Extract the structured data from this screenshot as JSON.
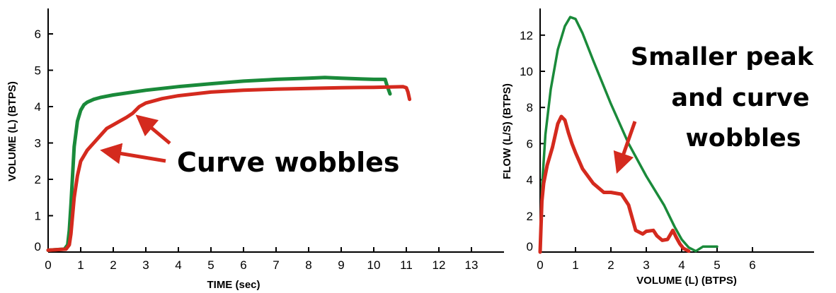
{
  "colors": {
    "green": "#1a8a3a",
    "red": "#d42a1e",
    "axis": "#000000"
  },
  "chart_data": [
    {
      "type": "line",
      "title": "",
      "xlabel": "TIME (sec)",
      "ylabel": "VOLUME (L) (BTPS)",
      "xlim": [
        0,
        14
      ],
      "ylim": [
        0,
        6.5
      ],
      "xticks": [
        "0",
        "1",
        "2",
        "3",
        "4",
        "5",
        "6",
        "7",
        "8",
        "9",
        "10",
        "11",
        "12",
        "13"
      ],
      "yticks": [
        "0",
        "1",
        "2",
        "3",
        "4",
        "5",
        "6"
      ],
      "series": [
        {
          "color": "green",
          "x": [
            0,
            0.5,
            0.6,
            0.65,
            0.7,
            0.75,
            0.8,
            0.9,
            1.0,
            1.1,
            1.2,
            1.4,
            1.6,
            2.0,
            3.0,
            4.0,
            5.0,
            6.0,
            7.0,
            8.0,
            8.5,
            9.0,
            10.0,
            10.35,
            10.4,
            10.5
          ],
          "y": [
            0.05,
            0.08,
            0.2,
            0.6,
            1.3,
            2.1,
            2.9,
            3.6,
            3.9,
            4.05,
            4.12,
            4.2,
            4.25,
            4.32,
            4.45,
            4.55,
            4.63,
            4.7,
            4.75,
            4.78,
            4.8,
            4.78,
            4.75,
            4.75,
            4.6,
            4.35
          ]
        },
        {
          "color": "red",
          "x": [
            0,
            0.55,
            0.65,
            0.7,
            0.75,
            0.8,
            0.9,
            1.0,
            1.2,
            1.4,
            1.6,
            1.8,
            2.0,
            2.2,
            2.4,
            2.6,
            2.8,
            3.0,
            3.5,
            4.0,
            5.0,
            6.0,
            7.0,
            8.0,
            9.0,
            10.0,
            10.9,
            11.0,
            11.05,
            11.1
          ],
          "y": [
            0.05,
            0.08,
            0.2,
            0.5,
            1.0,
            1.5,
            2.1,
            2.5,
            2.8,
            3.0,
            3.2,
            3.4,
            3.5,
            3.6,
            3.7,
            3.82,
            4.0,
            4.1,
            4.22,
            4.3,
            4.4,
            4.45,
            4.48,
            4.5,
            4.52,
            4.53,
            4.55,
            4.52,
            4.4,
            4.2
          ]
        }
      ],
      "annotations": [
        {
          "text": "Curve wobbles"
        }
      ]
    },
    {
      "type": "line",
      "title": "",
      "xlabel": "VOLUME (L) (BTPS)",
      "ylabel": "FLOW (L/S) (BTPS)",
      "xlim": [
        0,
        7.2
      ],
      "ylim": [
        0,
        13.5
      ],
      "xticks": [
        "0",
        "1",
        "2",
        "3",
        "4",
        "5",
        "6"
      ],
      "yticks": [
        "0",
        "2",
        "4",
        "6",
        "8",
        "10",
        "12"
      ],
      "series": [
        {
          "color": "green",
          "x": [
            0,
            0.05,
            0.15,
            0.3,
            0.5,
            0.7,
            0.85,
            1.0,
            1.2,
            1.5,
            2.0,
            2.5,
            3.0,
            3.5,
            3.8,
            4.0,
            4.2,
            4.4,
            4.6,
            4.8,
            5.0
          ],
          "y": [
            0,
            3.5,
            6.5,
            9.0,
            11.2,
            12.5,
            13.0,
            12.9,
            12.1,
            10.6,
            8.2,
            6.0,
            4.2,
            2.6,
            1.4,
            0.7,
            0.25,
            0.05,
            0.3,
            0.3,
            0.3
          ]
        },
        {
          "color": "red",
          "x": [
            0,
            0.05,
            0.1,
            0.2,
            0.35,
            0.5,
            0.6,
            0.7,
            0.8,
            0.9,
            1.0,
            1.2,
            1.5,
            1.8,
            2.0,
            2.3,
            2.5,
            2.7,
            2.9,
            3.0,
            3.2,
            3.3,
            3.45,
            3.6,
            3.75,
            3.85,
            3.95,
            4.05,
            4.2
          ],
          "y": [
            0,
            2.8,
            3.8,
            4.8,
            5.8,
            7.1,
            7.5,
            7.3,
            6.6,
            6.0,
            5.5,
            4.6,
            3.8,
            3.3,
            3.3,
            3.2,
            2.6,
            1.2,
            1.0,
            1.15,
            1.2,
            0.9,
            0.65,
            0.7,
            1.2,
            0.8,
            0.45,
            0.2,
            0.05
          ]
        }
      ],
      "annotations": [
        {
          "lines": [
            "Smaller peak",
            "and curve",
            "wobbles"
          ]
        }
      ]
    }
  ]
}
